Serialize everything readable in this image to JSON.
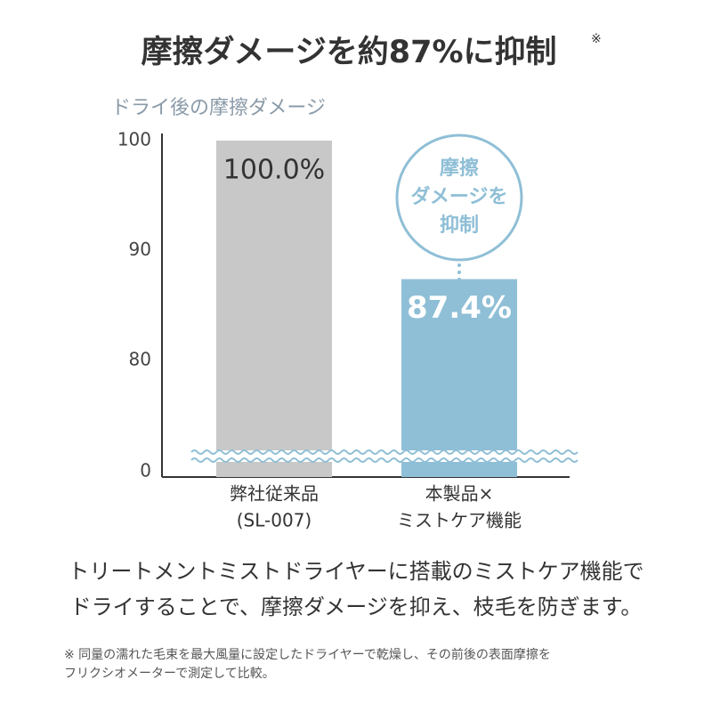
{
  "chart_data": {
    "type": "bar",
    "title": "摩擦ダメージを約87%に抑制",
    "title_note": "※",
    "subtitle": "ドライ後の摩擦ダメージ",
    "categories": [
      [
        "弊社従来品",
        "(SL-007)"
      ],
      [
        "本製品×",
        "ミストケア機能"
      ]
    ],
    "values": [
      100.0,
      87.4
    ],
    "value_labels": [
      "100.0%",
      "87.4%"
    ],
    "colors": [
      "#c8c8c8",
      "#8fbfd6"
    ],
    "ylim": [
      0,
      100
    ],
    "yticks": [
      0,
      80,
      90,
      100
    ],
    "ybreak": [
      0,
      80
    ],
    "annotation": [
      "摩擦",
      "ダメージを",
      "抑制"
    ]
  },
  "body": [
    "トリートメントミストドライヤーに搭載のミストケア機能で",
    "ドライすることで、摩擦ダメージを抑え、枝毛を防ぎます。"
  ],
  "footnote": [
    "※ 同量の濡れた毛束を最大風量に設定したドライヤーで乾燥し、その前後の表面摩擦を",
    "フリクシオメーターで測定して比較。"
  ]
}
